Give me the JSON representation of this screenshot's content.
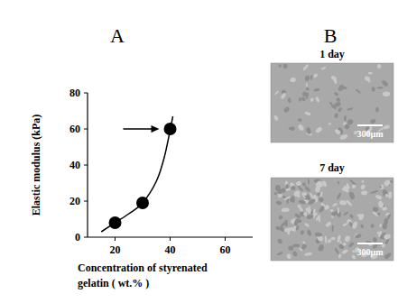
{
  "chart_data": {
    "type": "scatter",
    "x_label": [
      "Concentration of styrenated",
      "gelatin ( wt.% )"
    ],
    "y_label": "Elastic modulus  (kPa)",
    "xlim": [
      10,
      70
    ],
    "xticks": [
      20,
      40,
      60
    ],
    "ylim": [
      0,
      80
    ],
    "yticks": [
      0,
      20,
      40,
      60,
      80
    ],
    "grid": false,
    "series": [
      {
        "type": "scatter",
        "marker": "circle",
        "color": "#000000",
        "x": [
          20,
          30,
          40
        ],
        "values": [
          8,
          19,
          60
        ]
      },
      {
        "type": "line",
        "line_style": "solid",
        "color": "#000000",
        "x": [
          15,
          20,
          25,
          30,
          35,
          38,
          41
        ],
        "values": [
          3,
          8,
          13,
          19,
          31,
          45,
          67
        ]
      }
    ]
  },
  "panels": {
    "labels": [
      "A",
      "B"
    ]
  },
  "images": [
    {
      "title": "1 day",
      "scale_bar": "300μm"
    },
    {
      "title": "7 day",
      "scale_bar": "300μm"
    }
  ]
}
